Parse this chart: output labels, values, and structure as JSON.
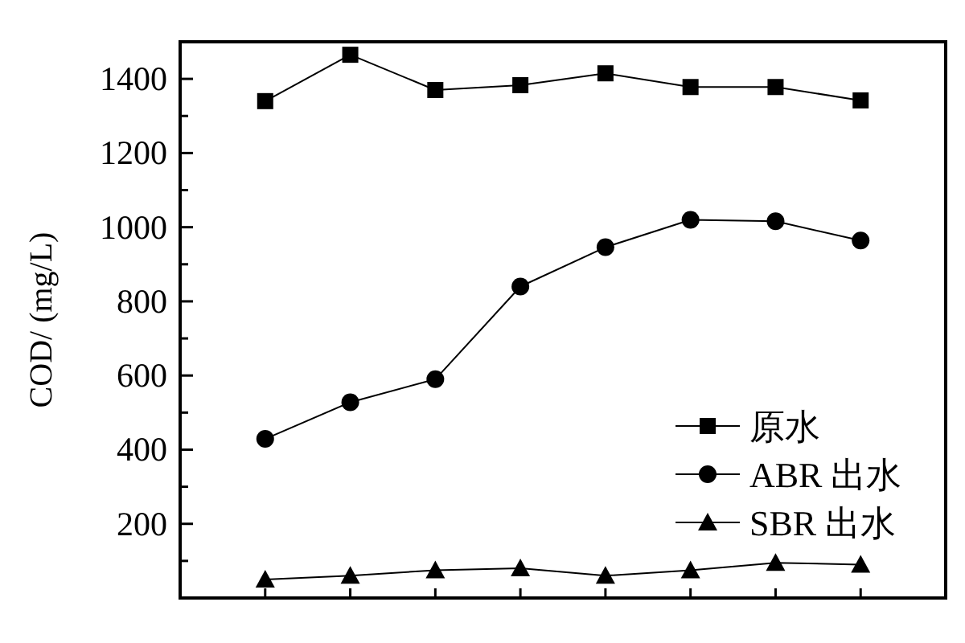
{
  "chart_data": {
    "type": "line",
    "ylabel": "COD/ (mg/L)",
    "categories": [
      null,
      null,
      null,
      null,
      null,
      null,
      null,
      null
    ],
    "series": [
      {
        "name": "原水",
        "color": "#000000",
        "marker": "square",
        "values": [
          1340,
          1465,
          1370,
          1383,
          1415,
          1378,
          1378,
          1342
        ]
      },
      {
        "name": "ABR 出水",
        "color": "#000000",
        "marker": "circle",
        "values": [
          429,
          528,
          590,
          840,
          946,
          1020,
          1016,
          964
        ]
      },
      {
        "name": "SBR 出水",
        "color": "#000000",
        "marker": "triangle",
        "values": [
          50,
          60,
          75,
          80,
          60,
          75,
          95,
          90
        ]
      }
    ],
    "ylim": [
      0,
      1500
    ],
    "yticks": [
      {
        "value": 100,
        "label": null
      },
      200,
      {
        "value": 300,
        "label": null
      },
      400,
      {
        "value": 500,
        "label": null
      },
      600,
      {
        "value": 700,
        "label": null
      },
      800,
      {
        "value": 900,
        "label": null
      },
      1000,
      {
        "value": 1100,
        "label": null
      },
      1200,
      {
        "value": 1300,
        "label": null
      },
      1400
    ],
    "legend": "bottom right"
  }
}
